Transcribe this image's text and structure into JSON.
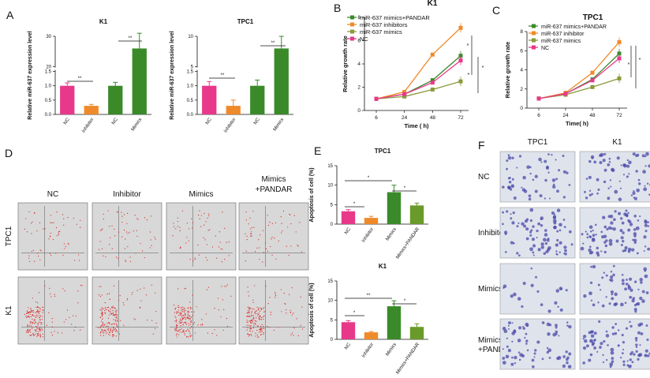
{
  "panels": {
    "A": "A",
    "B": "B",
    "C": "C",
    "D": "D",
    "E": "E",
    "F": "F"
  },
  "colors": {
    "nc": "#e8388a",
    "inhibitor": "#ee8a2a",
    "mimics": "#3a8a2a",
    "pandar": "#6a9a2a",
    "mimics_line": "#8a9a3a",
    "grey": "#d8d8d8"
  },
  "chart_data": [
    {
      "id": "A_K1",
      "type": "bar",
      "title": "K1",
      "ylabel": "Relative miR-637 expression level",
      "categories": [
        "NC",
        "Inhibitor",
        "NC",
        "Mimics"
      ],
      "values": [
        1.0,
        0.3,
        1.0,
        26
      ],
      "errors": [
        0.1,
        0.05,
        0.12,
        5
      ],
      "ylim": [
        0,
        30
      ],
      "yticks": [
        "0.0",
        "0.5",
        "1.0",
        "1.5",
        "20",
        "30"
      ],
      "sig": [
        "**",
        "**"
      ]
    },
    {
      "id": "A_TPC1",
      "type": "bar",
      "title": "TPC1",
      "ylabel": "Relative miR-637 expression level",
      "categories": [
        "NC",
        "Inhibitor",
        "NC",
        "Mimics"
      ],
      "values": [
        1.0,
        0.3,
        1.0,
        8
      ],
      "errors": [
        0.15,
        0.2,
        0.2,
        2
      ],
      "ylim": [
        0,
        10
      ],
      "yticks": [
        "0.0",
        "0.5",
        "1.0",
        "1.5",
        "5",
        "10"
      ],
      "sig": [
        "**",
        "**"
      ]
    },
    {
      "id": "B_K1",
      "type": "line",
      "title": "K1",
      "xlabel": "Time ( h)",
      "ylabel": "Relative growth rate",
      "x": [
        6,
        24,
        48,
        72
      ],
      "xticks": [
        "6",
        "24",
        "48",
        "72"
      ],
      "yticks": [
        "0",
        "2",
        "4",
        "6",
        "8"
      ],
      "ylim": [
        0,
        8
      ],
      "series": [
        {
          "name": "miR-637 mimics+PANDAR",
          "values": [
            1.0,
            1.4,
            2.6,
            4.7
          ]
        },
        {
          "name": "miR-637 inhibitors",
          "values": [
            1.0,
            1.6,
            4.8,
            7.1
          ]
        },
        {
          "name": "miR-637 mimics",
          "values": [
            1.0,
            1.2,
            1.8,
            2.5
          ]
        },
        {
          "name": "NC",
          "values": [
            1.0,
            1.4,
            2.4,
            4.3
          ]
        }
      ],
      "sig": [
        "*",
        "*",
        "*"
      ]
    },
    {
      "id": "C_TPC1",
      "type": "line",
      "title": "TPC1",
      "xlabel": "Time( h)",
      "ylabel": "Relative growth rate",
      "x": [
        6,
        24,
        48,
        72
      ],
      "xticks": [
        "6",
        "24",
        "48",
        "72"
      ],
      "yticks": [
        "0",
        "2",
        "4",
        "6",
        "8"
      ],
      "ylim": [
        0,
        8
      ],
      "series": [
        {
          "name": "miR-637 mimics+PANDAR",
          "values": [
            1.0,
            1.5,
            3.0,
            5.7
          ]
        },
        {
          "name": "miR-637 inihibitor",
          "values": [
            1.0,
            1.6,
            3.7,
            6.9
          ]
        },
        {
          "name": "miR-637 mimics",
          "values": [
            1.0,
            1.4,
            2.2,
            3.1
          ]
        },
        {
          "name": "NC",
          "values": [
            1.0,
            1.5,
            2.9,
            5.2
          ]
        }
      ],
      "sig": [
        "*",
        "*"
      ]
    },
    {
      "id": "E_TPC1",
      "type": "bar",
      "title": "TPC1",
      "ylabel": "Apoptosis of cell (%)",
      "categories": [
        "NC",
        "Inhibitor",
        "Mimics",
        "Mimics+PANDAR"
      ],
      "values": [
        3.3,
        1.6,
        8.2,
        4.8
      ],
      "errors": [
        0.4,
        0.4,
        1.8,
        0.6
      ],
      "ylim": [
        0,
        15
      ],
      "yticks": [
        "0",
        "5",
        "10",
        "15"
      ],
      "sig": [
        "*",
        "*",
        "*"
      ]
    },
    {
      "id": "E_K1",
      "type": "bar",
      "title": "K1",
      "ylabel": "Apoptosis of cell (%)",
      "categories": [
        "NC",
        "Inhibitor",
        "Mimics",
        "Mimics+PANDAR"
      ],
      "values": [
        4.4,
        1.8,
        8.5,
        3.2
      ],
      "errors": [
        0.4,
        0.2,
        1.4,
        0.8
      ],
      "ylim": [
        0,
        15
      ],
      "yticks": [
        "0",
        "5",
        "10",
        "15"
      ],
      "sig": [
        "*",
        "**",
        "*"
      ]
    }
  ],
  "flow": {
    "columns": [
      "NC",
      "Inhibitor",
      "Mimics",
      "Mimics\n+PANDAR"
    ],
    "rows": [
      "TPC1",
      "K1"
    ]
  },
  "transwell": {
    "columns": [
      "TPC1",
      "K1"
    ],
    "rows": [
      "NC",
      "Inhibitor",
      "Mimics",
      "Mimics\n+PANDAR"
    ]
  }
}
